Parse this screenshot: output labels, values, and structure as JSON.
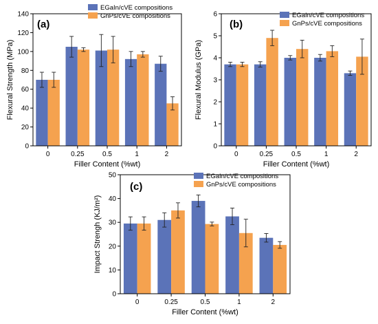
{
  "colors": {
    "series_a": "#5b73b8",
    "series_b": "#f5a24f",
    "axis": "#000000",
    "error_bar": "#222222"
  },
  "chart_data": [
    {
      "type": "bar",
      "panel_label": "(a)",
      "title": "",
      "xlabel": "Filler Content (%wt)",
      "ylabel": "Flexural Strength (MPa)",
      "ylim": [
        0,
        140
      ],
      "yticks": [
        "0",
        "20",
        "40",
        "60",
        "80",
        "100",
        "120",
        "140"
      ],
      "legend_position": "top-right",
      "grid": false,
      "categories": [
        "0",
        "0.25",
        "0.5",
        "1",
        "2"
      ],
      "series": [
        {
          "name": "EGaIn/cVE compositions",
          "values": [
            70,
            105,
            101,
            92,
            87
          ],
          "errors": [
            8,
            11,
            17,
            8,
            8
          ]
        },
        {
          "name": "GnPs/cVE compositions",
          "values": [
            70,
            102,
            102,
            97,
            45
          ],
          "errors": [
            8,
            2,
            14,
            3,
            7
          ]
        }
      ]
    },
    {
      "type": "bar",
      "panel_label": "(b)",
      "title": "",
      "xlabel": "Filler Content (%wt)",
      "ylabel": "Flexural Modulus (GPa)",
      "ylim": [
        0,
        6
      ],
      "yticks": [
        "0",
        "1",
        "2",
        "3",
        "4",
        "5",
        "6"
      ],
      "legend_position": "top-right",
      "grid": false,
      "categories": [
        "0",
        "0.25",
        "0.5",
        "1",
        "2"
      ],
      "series": [
        {
          "name": "EGaIn/cVE compositions",
          "values": [
            3.7,
            3.7,
            4.0,
            4.0,
            3.3
          ],
          "errors": [
            0.1,
            0.12,
            0.1,
            0.15,
            0.1
          ]
        },
        {
          "name": "GnPs/cVE compositions",
          "values": [
            3.7,
            4.9,
            4.4,
            4.3,
            4.05
          ],
          "errors": [
            0.1,
            0.35,
            0.4,
            0.25,
            0.8
          ]
        }
      ]
    },
    {
      "type": "bar",
      "panel_label": "(c)",
      "title": "",
      "xlabel": "Filler Content (%wt)",
      "ylabel": "Impact Strengh (KJ/m²)",
      "ylim": [
        0,
        50
      ],
      "yticks": [
        "0",
        "10",
        "20",
        "30",
        "40",
        "50"
      ],
      "legend_position": "top-right",
      "grid": false,
      "categories": [
        "0",
        "0.25",
        "0.5",
        "1",
        "2"
      ],
      "series": [
        {
          "name": "EGaIn/cVE compositions",
          "values": [
            29.5,
            31,
            39,
            32.5,
            23.5
          ],
          "errors": [
            2.8,
            3,
            2.5,
            3.5,
            1.8
          ]
        },
        {
          "name": "GnPs/cVE compositions",
          "values": [
            29.5,
            35,
            29.3,
            25.5,
            20.5
          ],
          "errors": [
            2.8,
            3.2,
            0.8,
            5.8,
            1.4
          ]
        }
      ]
    }
  ]
}
